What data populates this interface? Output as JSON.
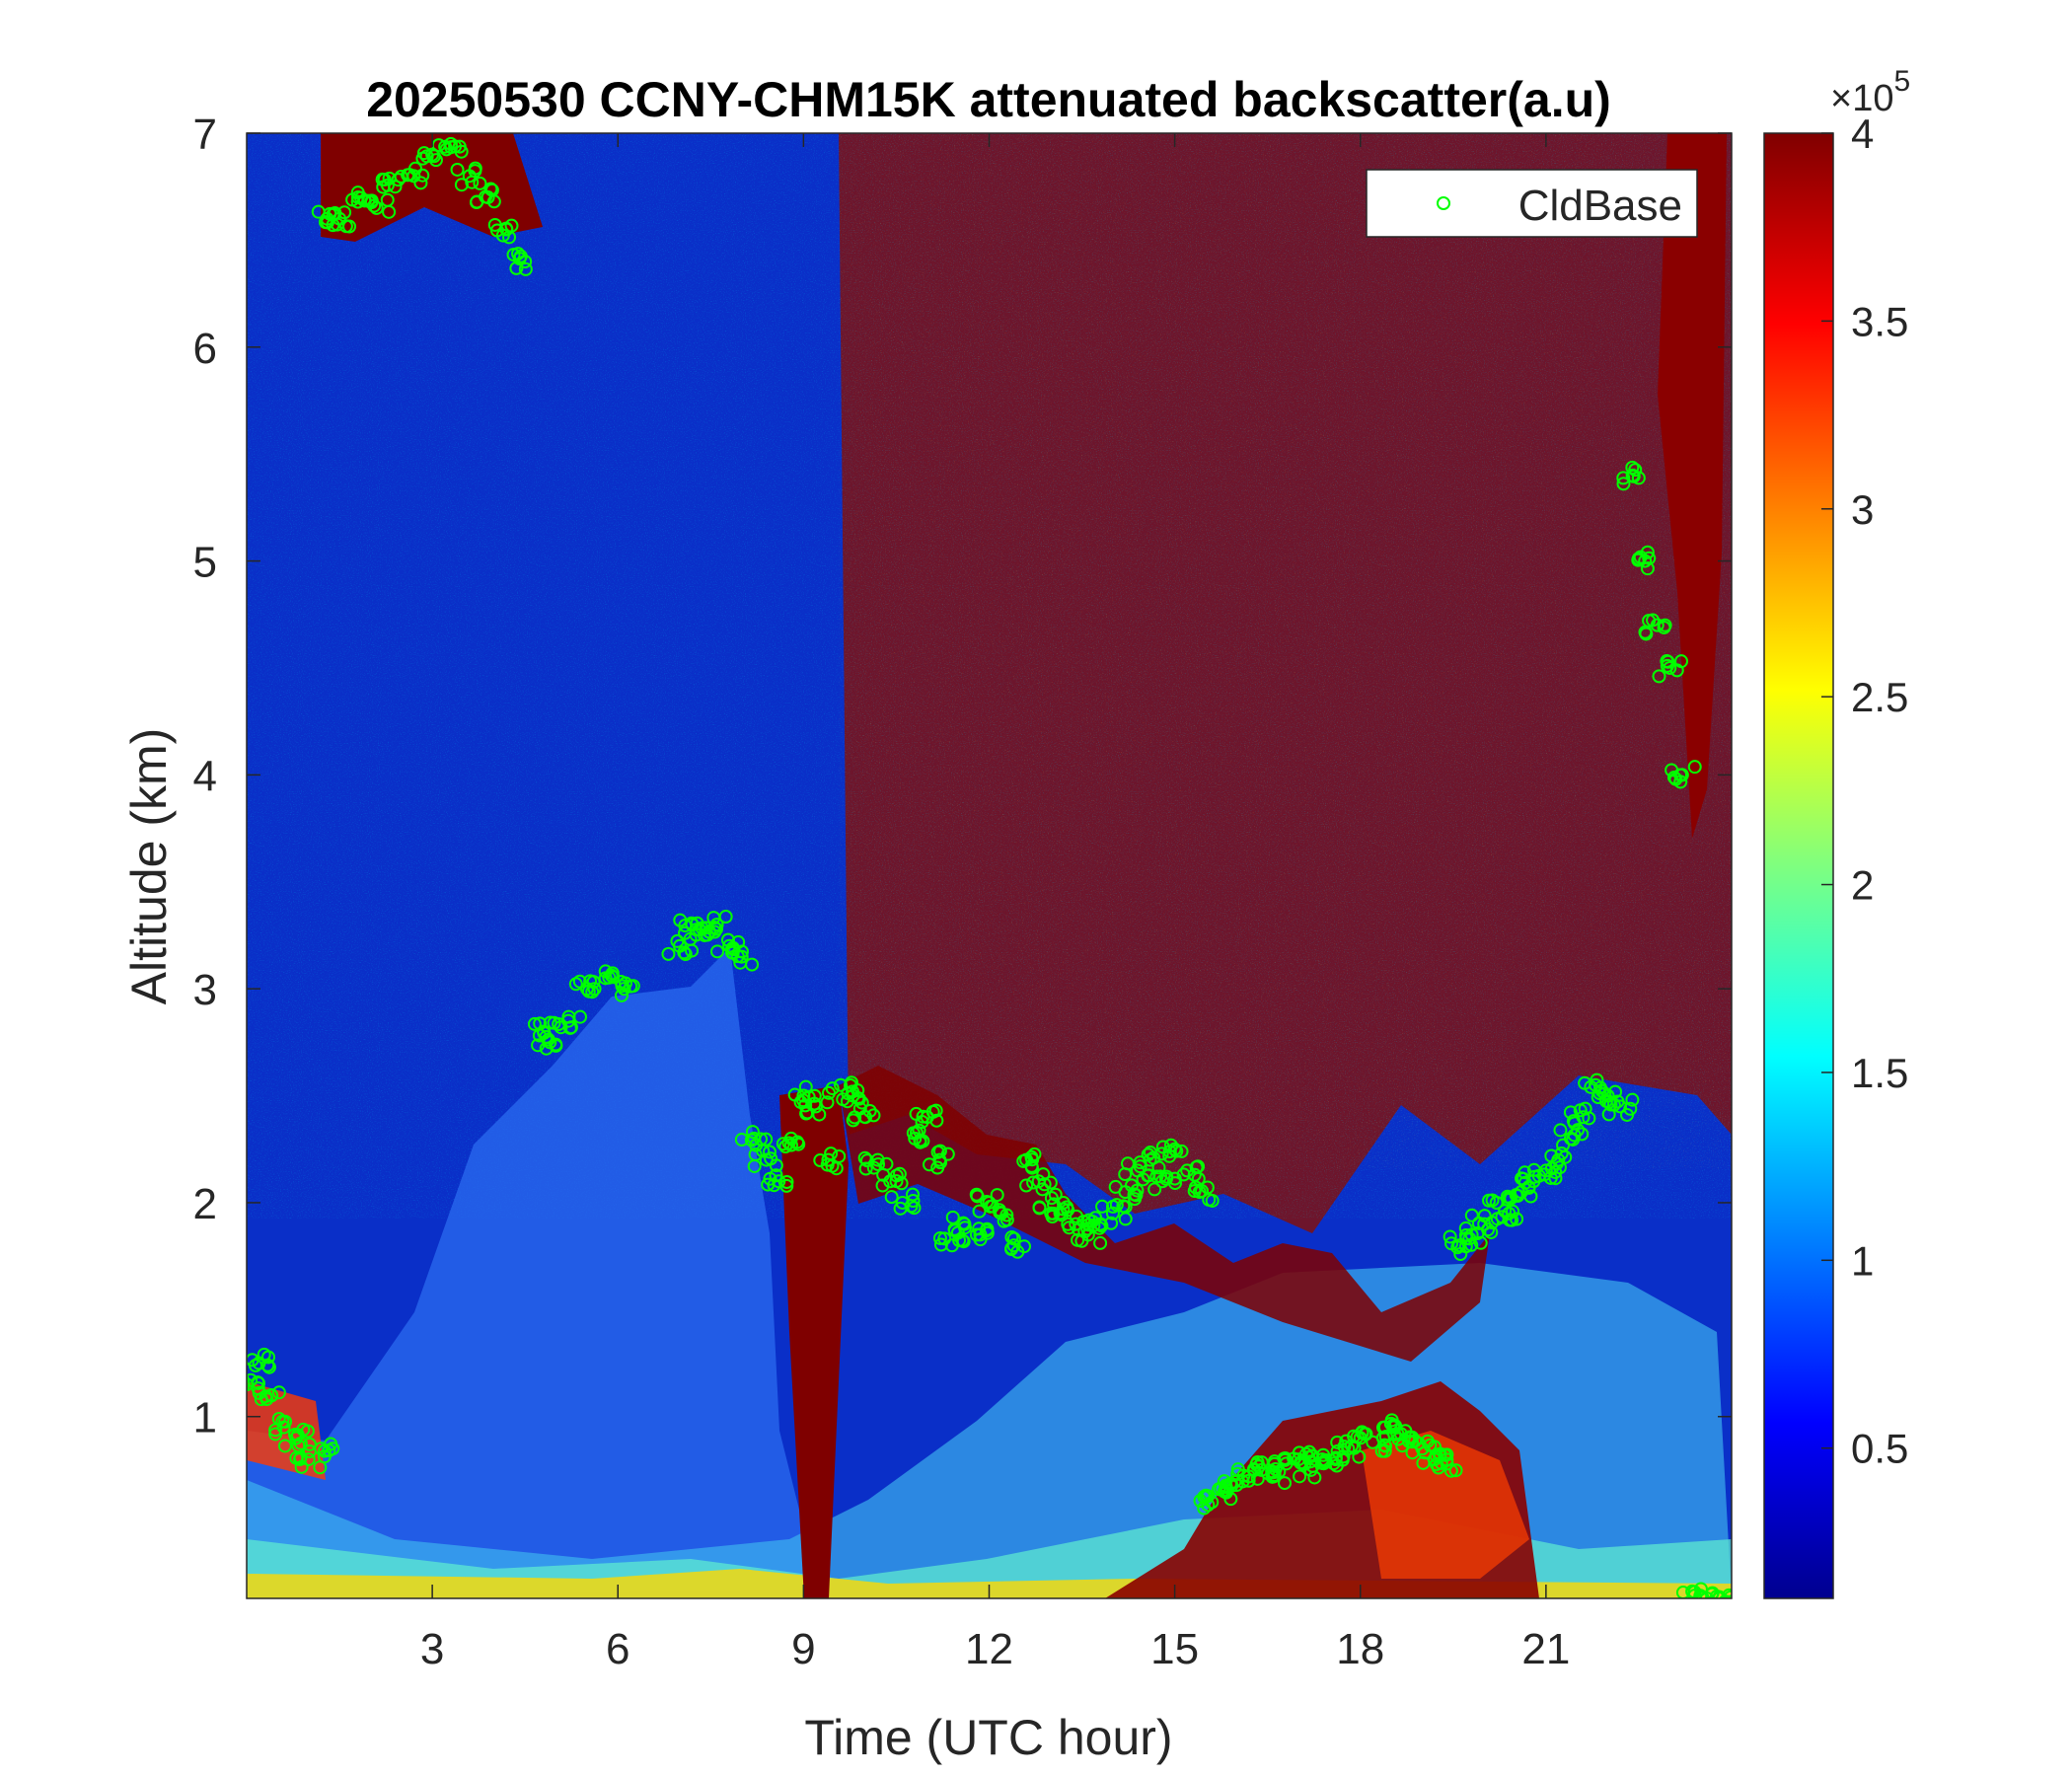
{
  "chart_data": {
    "type": "heatmap",
    "title": "20250530 CCNY-CHM15K attenuated backscatter(a.u)",
    "xlabel": "Time (UTC hour)",
    "ylabel": "Altitude (km)",
    "xlim": [
      0,
      24
    ],
    "ylim": [
      0.15,
      7
    ],
    "x_ticks": [
      3,
      6,
      9,
      12,
      15,
      18,
      21
    ],
    "y_ticks": [
      1,
      2,
      3,
      4,
      5,
      6,
      7
    ],
    "grid": false,
    "legend": {
      "entries": [
        "CldBase"
      ],
      "placement": "top-right"
    },
    "colorbar": {
      "colormap": "jet",
      "range": [
        0.1,
        4
      ],
      "ticks": [
        0.5,
        1,
        1.5,
        2,
        2.5,
        3,
        3.5,
        4
      ],
      "exponent_label": "×10",
      "exponent_power": "5"
    },
    "colors": {
      "cloud_base_marker": "#00ff00",
      "axis": "#262626"
    },
    "series": [
      {
        "name": "CldBase",
        "marker": "circle",
        "x": [
          0.0,
          0.2,
          0.4,
          0.6,
          0.8,
          1.0,
          1.2,
          1.3,
          1.5,
          1.8,
          2.1,
          2.4,
          2.7,
          3.0,
          3.3,
          3.6,
          3.9,
          4.2,
          4.5,
          4.8,
          4.9,
          5.2,
          5.5,
          5.8,
          6.1,
          7.0,
          7.2,
          7.4,
          7.6,
          7.8,
          8.0,
          8.2,
          8.4,
          8.6,
          8.8,
          9.0,
          9.2,
          9.4,
          9.6,
          9.8,
          10.0,
          10.2,
          10.4,
          10.6,
          10.8,
          11.0,
          11.2,
          11.4,
          11.6,
          11.8,
          12.0,
          12.2,
          12.4,
          12.6,
          12.8,
          13.0,
          13.2,
          13.4,
          13.6,
          13.8,
          14.0,
          14.2,
          14.4,
          14.6,
          14.8,
          15.0,
          15.2,
          15.4,
          15.6,
          15.8,
          16.0,
          16.2,
          16.4,
          16.6,
          16.8,
          17.0,
          17.2,
          17.4,
          17.6,
          17.8,
          18.0,
          18.2,
          18.4,
          18.6,
          18.8,
          19.0,
          19.2,
          19.4,
          19.6,
          19.8,
          20.0,
          20.2,
          20.4,
          20.6,
          20.8,
          21.0,
          21.2,
          21.4,
          21.6,
          21.8,
          22.0,
          22.2,
          22.4,
          22.6,
          22.8,
          23.0,
          23.2,
          23.4,
          23.6,
          23.8
        ],
        "y": [
          1.15,
          1.25,
          1.1,
          0.95,
          0.9,
          0.8,
          0.85,
          6.6,
          6.6,
          6.7,
          6.65,
          6.75,
          6.8,
          6.9,
          6.95,
          6.8,
          6.7,
          6.55,
          6.4,
          2.8,
          2.75,
          2.85,
          3.0,
          3.05,
          3.0,
          3.2,
          3.3,
          3.25,
          3.3,
          3.2,
          3.15,
          2.3,
          2.2,
          2.1,
          2.3,
          2.5,
          2.45,
          2.2,
          2.55,
          2.5,
          2.4,
          2.2,
          2.1,
          2.0,
          2.3,
          2.4,
          2.2,
          1.8,
          1.9,
          1.85,
          2.0,
          1.95,
          1.8,
          2.2,
          2.1,
          1.95,
          2.0,
          1.9,
          1.85,
          1.9,
          1.95,
          2.05,
          2.15,
          2.2,
          2.1,
          2.25,
          2.15,
          2.05,
          0.6,
          0.65,
          0.68,
          0.72,
          0.75,
          0.72,
          0.78,
          0.8,
          0.75,
          0.82,
          0.8,
          0.85,
          0.9,
          0.88,
          0.95,
          0.92,
          0.9,
          0.85,
          0.8,
          0.78,
          1.8,
          1.85,
          1.9,
          2.0,
          1.95,
          2.05,
          2.1,
          2.15,
          2.2,
          2.3,
          2.4,
          2.55,
          2.5,
          2.45,
          5.4,
          5.0,
          4.7,
          4.5,
          4.0,
          0.18,
          0.15,
          0.15
        ]
      }
    ]
  }
}
